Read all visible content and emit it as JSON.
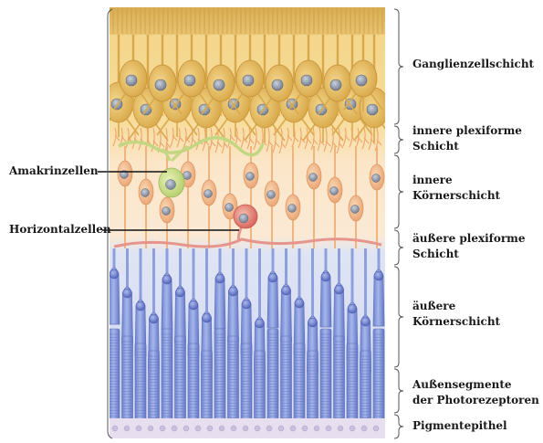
{
  "layers": [
    {
      "id": "ganglion",
      "lines": [
        "Ganglienzellschicht"
      ]
    },
    {
      "id": "ipl",
      "lines": [
        "innere plexiforme",
        "Schicht"
      ]
    },
    {
      "id": "inl",
      "lines": [
        "innere",
        "Körnerschicht"
      ]
    },
    {
      "id": "opl",
      "lines": [
        "äußere plexiforme",
        "Schicht"
      ]
    },
    {
      "id": "onl",
      "lines": [
        "äußere",
        "Körnerschicht"
      ]
    },
    {
      "id": "segments",
      "lines": [
        "Außensegmente",
        "der Photorezeptoren"
      ]
    },
    {
      "id": "pigment",
      "lines": [
        "Pigmentepithel"
      ]
    }
  ],
  "cells": {
    "amacrine": "Amakrinzellen",
    "horizontal": "Horizontalzellen"
  },
  "colors": {
    "ganglion": "#f2cf7a",
    "inner_nuclear": "#f8dcc0",
    "photoreceptor": "#7f95d8",
    "pigment": "#e8e0f0",
    "amacrine": "#cfe09a",
    "horizontal": "#e07a74"
  }
}
